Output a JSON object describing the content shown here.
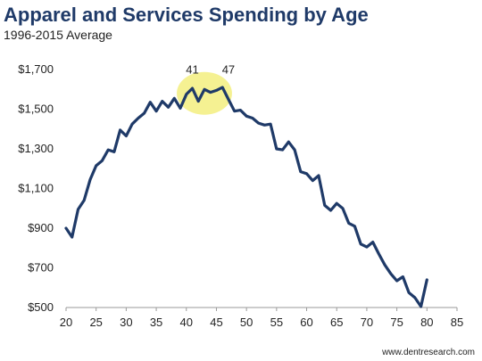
{
  "header": {
    "title": "Apparel and Services Spending by Age",
    "subtitle": "1996-2015 Average"
  },
  "footer": {
    "source": "www.dentresearch.com"
  },
  "colors": {
    "line": "#1f3a68",
    "highlight": "#f2ec6d",
    "axis": "#9a9a9a"
  },
  "chart_data": {
    "type": "line",
    "title": "Apparel and Services Spending by Age",
    "subtitle": "1996-2015 Average",
    "xlabel": "",
    "ylabel": "",
    "xlim": [
      20,
      85
    ],
    "ylim": [
      500,
      1700
    ],
    "x_ticks": [
      20,
      25,
      30,
      35,
      40,
      45,
      50,
      55,
      60,
      65,
      70,
      75,
      80,
      85
    ],
    "y_ticks": [
      500,
      700,
      900,
      1100,
      1300,
      1500,
      1700
    ],
    "y_tick_labels": [
      "$500",
      "$700",
      "$900",
      "$1,100",
      "$1,300",
      "$1,500",
      "$1,700"
    ],
    "grid": false,
    "legend": "none",
    "highlight_range": [
      39,
      47
    ],
    "annotations": [
      {
        "x": 41,
        "label": "41"
      },
      {
        "x": 47,
        "label": "47"
      }
    ],
    "series": [
      {
        "x": [
          20,
          21,
          22,
          23,
          24,
          25,
          26,
          27,
          28,
          29,
          30,
          31,
          32,
          33,
          34,
          35,
          36,
          37,
          38,
          39,
          40,
          41,
          42,
          43,
          44,
          45,
          46,
          47,
          48,
          49,
          50,
          51,
          52,
          53,
          54,
          55,
          56,
          57,
          58,
          59,
          60,
          61,
          62,
          63,
          64,
          65,
          66,
          67,
          68,
          69,
          70,
          71,
          72,
          73,
          74,
          75,
          76,
          77,
          78,
          79,
          80
        ],
        "values": [
          900,
          855,
          995,
          1040,
          1145,
          1215,
          1240,
          1295,
          1285,
          1395,
          1365,
          1425,
          1455,
          1480,
          1535,
          1490,
          1540,
          1510,
          1555,
          1505,
          1575,
          1605,
          1540,
          1600,
          1585,
          1595,
          1610,
          1550,
          1490,
          1495,
          1465,
          1455,
          1430,
          1420,
          1425,
          1300,
          1295,
          1335,
          1295,
          1185,
          1175,
          1140,
          1165,
          1015,
          990,
          1025,
          1000,
          925,
          910,
          820,
          805,
          830,
          770,
          715,
          670,
          635,
          655,
          575,
          550,
          505,
          640
        ]
      }
    ]
  }
}
